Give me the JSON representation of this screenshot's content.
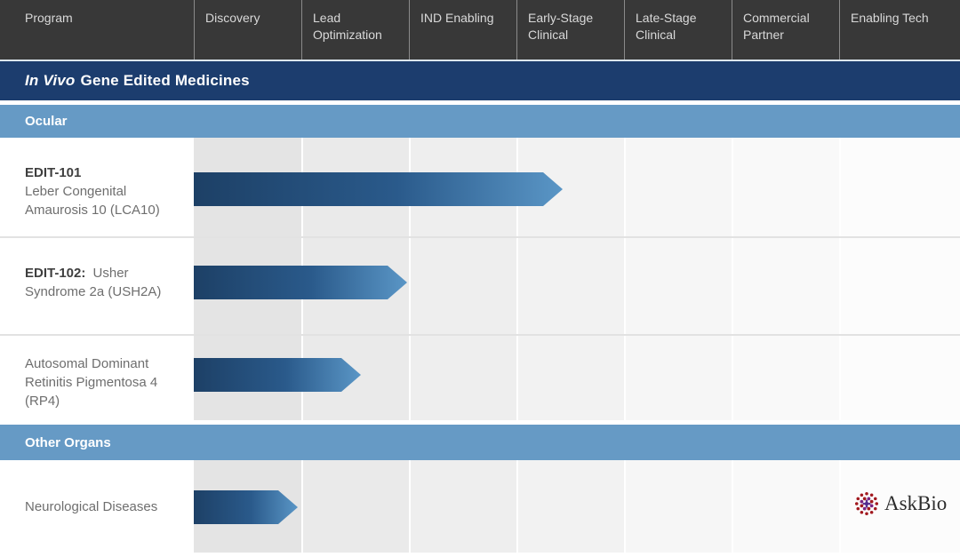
{
  "header": {
    "columns": [
      "Program",
      "Discovery",
      "Lead Optimization",
      "IND Enabling",
      "Early-Stage Clinical",
      "Late-Stage Clinical",
      "Commercial Partner",
      "Enabling Tech"
    ]
  },
  "bands": {
    "category_italic": "In Vivo",
    "category_rest": "Gene Edited Medicines",
    "subcategory_1": "Ocular",
    "subcategory_2": "Other Organs"
  },
  "chart_data": {
    "type": "bar",
    "title": "In Vivo Gene Edited Medicines pipeline",
    "stages": [
      "Discovery",
      "Lead Optimization",
      "IND Enabling",
      "Early-Stage Clinical",
      "Late-Stage Clinical",
      "Commercial Partner",
      "Enabling Tech"
    ],
    "stage_axis_note": "bar length measured in stage-columns completed from start of Discovery",
    "rows": [
      {
        "group": "Ocular",
        "code": "EDIT-101",
        "indication": "Leber Congenital Amaurosis 10 (LCA10)",
        "progress_stages": 3.43,
        "stage_reached": "Early-Stage Clinical"
      },
      {
        "group": "Ocular",
        "code": "EDIT-102:",
        "indication": "Usher Syndrome 2a (USH2A)",
        "progress_stages": 1.98,
        "stage_reached": "Lead Optimization complete"
      },
      {
        "group": "Ocular",
        "code": "",
        "indication": "Autosomal Dominant Retinitis Pigmentosa 4 (RP4)",
        "progress_stages": 1.55,
        "stage_reached": "Lead Optimization"
      },
      {
        "group": "Other Organs",
        "code": "",
        "indication": "Neurological Diseases",
        "progress_stages": 0.97,
        "stage_reached": "Discovery complete"
      }
    ]
  },
  "logo": {
    "text": "AskBio",
    "icon": "virus-capsid-icon"
  },
  "colors": {
    "header_bg": "#383838",
    "category_band": "#1c3d6e",
    "subcategory_band": "#669ac5",
    "bar_gradient_start": "#1d4066",
    "bar_gradient_end": "#5a96c6"
  }
}
